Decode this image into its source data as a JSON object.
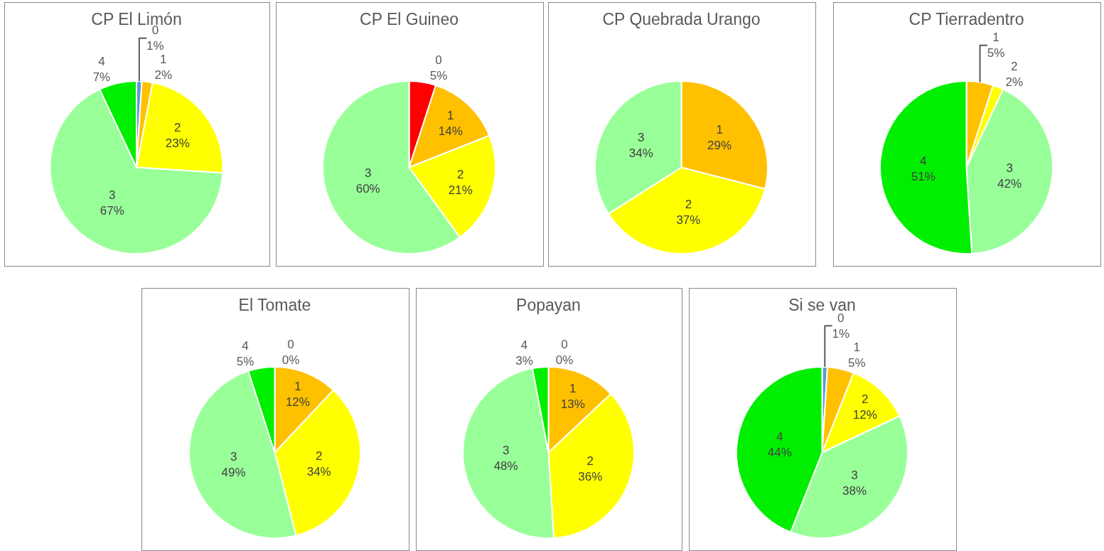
{
  "chart_data": [
    {
      "type": "pie",
      "title": "CP El Limón",
      "categories": [
        "0",
        "1",
        "2",
        "3",
        "4"
      ],
      "values": [
        1,
        2,
        23,
        67,
        7
      ],
      "value_labels": [
        "1%",
        "2%",
        "23%",
        "67%",
        "7%"
      ],
      "colors": [
        "#5b9bd5",
        "#ffc000",
        "#ffff00",
        "#99ff99",
        "#00ee00"
      ],
      "legend": false
    },
    {
      "type": "pie",
      "title": "CP El Guineo",
      "categories": [
        "0",
        "1",
        "2",
        "3"
      ],
      "values": [
        5,
        14,
        21,
        60
      ],
      "value_labels": [
        "5%",
        "14%",
        "21%",
        "60%"
      ],
      "colors": [
        "#ff0000",
        "#ffc000",
        "#ffff00",
        "#99ff99"
      ],
      "legend": false
    },
    {
      "type": "pie",
      "title": "CP Quebrada Urango",
      "categories": [
        "1",
        "2",
        "3"
      ],
      "values": [
        29,
        37,
        34
      ],
      "value_labels": [
        "29%",
        "37%",
        "34%"
      ],
      "colors": [
        "#ffc000",
        "#ffff00",
        "#99ff99"
      ],
      "legend": false
    },
    {
      "type": "pie",
      "title": "CP Tierradentro",
      "categories": [
        "1",
        "2",
        "3",
        "4"
      ],
      "values": [
        5,
        2,
        42,
        51
      ],
      "value_labels": [
        "5%",
        "2%",
        "42%",
        "51%"
      ],
      "colors": [
        "#ffc000",
        "#ffff00",
        "#99ff99",
        "#00ee00"
      ],
      "legend": false
    },
    {
      "type": "pie",
      "title": "El Tomate",
      "categories": [
        "0",
        "1",
        "2",
        "3",
        "4"
      ],
      "values": [
        0,
        12,
        34,
        49,
        5
      ],
      "value_labels": [
        "0%",
        "12%",
        "34%",
        "49%",
        "5%"
      ],
      "colors": [
        "#5b9bd5",
        "#ffc000",
        "#ffff00",
        "#99ff99",
        "#00ee00"
      ],
      "legend": false
    },
    {
      "type": "pie",
      "title": "Popayan",
      "categories": [
        "0",
        "1",
        "2",
        "3",
        "4"
      ],
      "values": [
        0,
        13,
        36,
        48,
        3
      ],
      "value_labels": [
        "0%",
        "13%",
        "36%",
        "48%",
        "3%"
      ],
      "colors": [
        "#5b9bd5",
        "#ffc000",
        "#ffff00",
        "#99ff99",
        "#00ee00"
      ],
      "legend": false
    },
    {
      "type": "pie",
      "title": "Si se van",
      "categories": [
        "0",
        "1",
        "2",
        "3",
        "4"
      ],
      "values": [
        1,
        5,
        12,
        38,
        44
      ],
      "value_labels": [
        "1%",
        "5%",
        "12%",
        "38%",
        "44%"
      ],
      "colors": [
        "#5b9bd5",
        "#ffc000",
        "#ffff00",
        "#99ff99",
        "#00ee00"
      ],
      "legend": false
    }
  ]
}
